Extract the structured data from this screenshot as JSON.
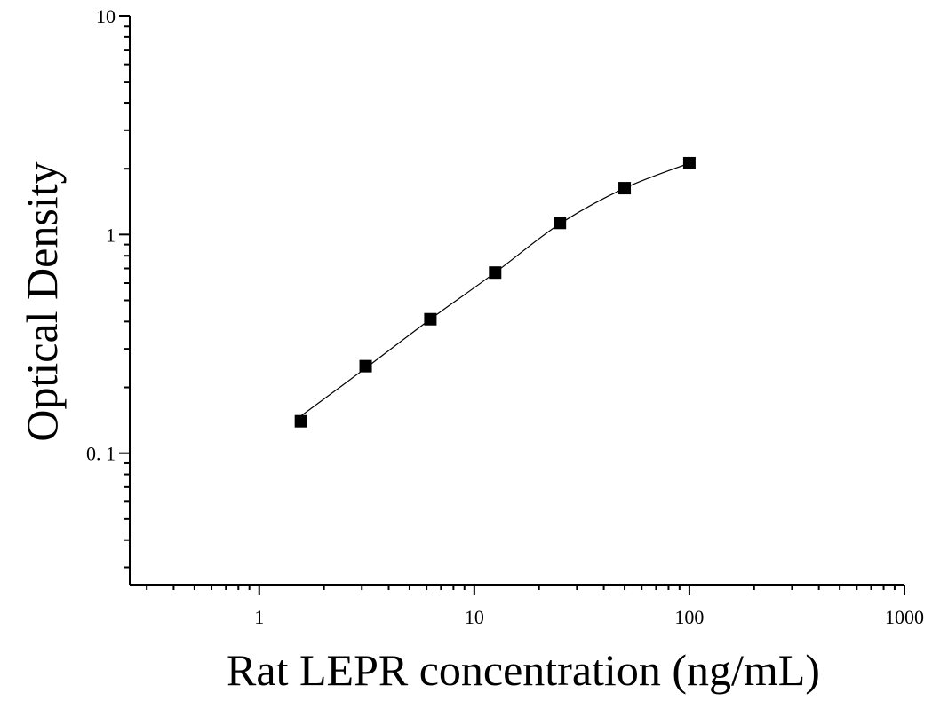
{
  "chart_data": {
    "type": "scatter",
    "title": "",
    "xlabel": "Rat LEPR concentration (ng/mL)",
    "ylabel": "Optical Density",
    "x_scale": "log",
    "y_scale": "log",
    "xlim": [
      0.25,
      1000
    ],
    "ylim": [
      0.025,
      10
    ],
    "x_ticks": [
      1,
      10,
      100,
      1000
    ],
    "x_tick_labels": [
      "1",
      "10",
      "100",
      "1000"
    ],
    "y_ticks": [
      0.1,
      1,
      10
    ],
    "y_tick_labels": [
      "0. 1",
      "1",
      "10"
    ],
    "grid": false,
    "legend": "none",
    "marker": "square",
    "marker_color": "#000000",
    "curve_color": "#000000",
    "series": [
      {
        "x": [
          1.5625,
          3.125,
          6.25,
          12.5,
          25,
          50,
          100
        ],
        "y": [
          0.14,
          0.25,
          0.41,
          0.67,
          1.13,
          1.63,
          2.12
        ]
      }
    ],
    "fit_curve": {
      "x": [
        1.5625,
        3.125,
        6.25,
        12.5,
        25,
        50,
        100
      ],
      "y": [
        0.148,
        0.245,
        0.41,
        0.67,
        1.12,
        1.63,
        2.12
      ]
    }
  }
}
